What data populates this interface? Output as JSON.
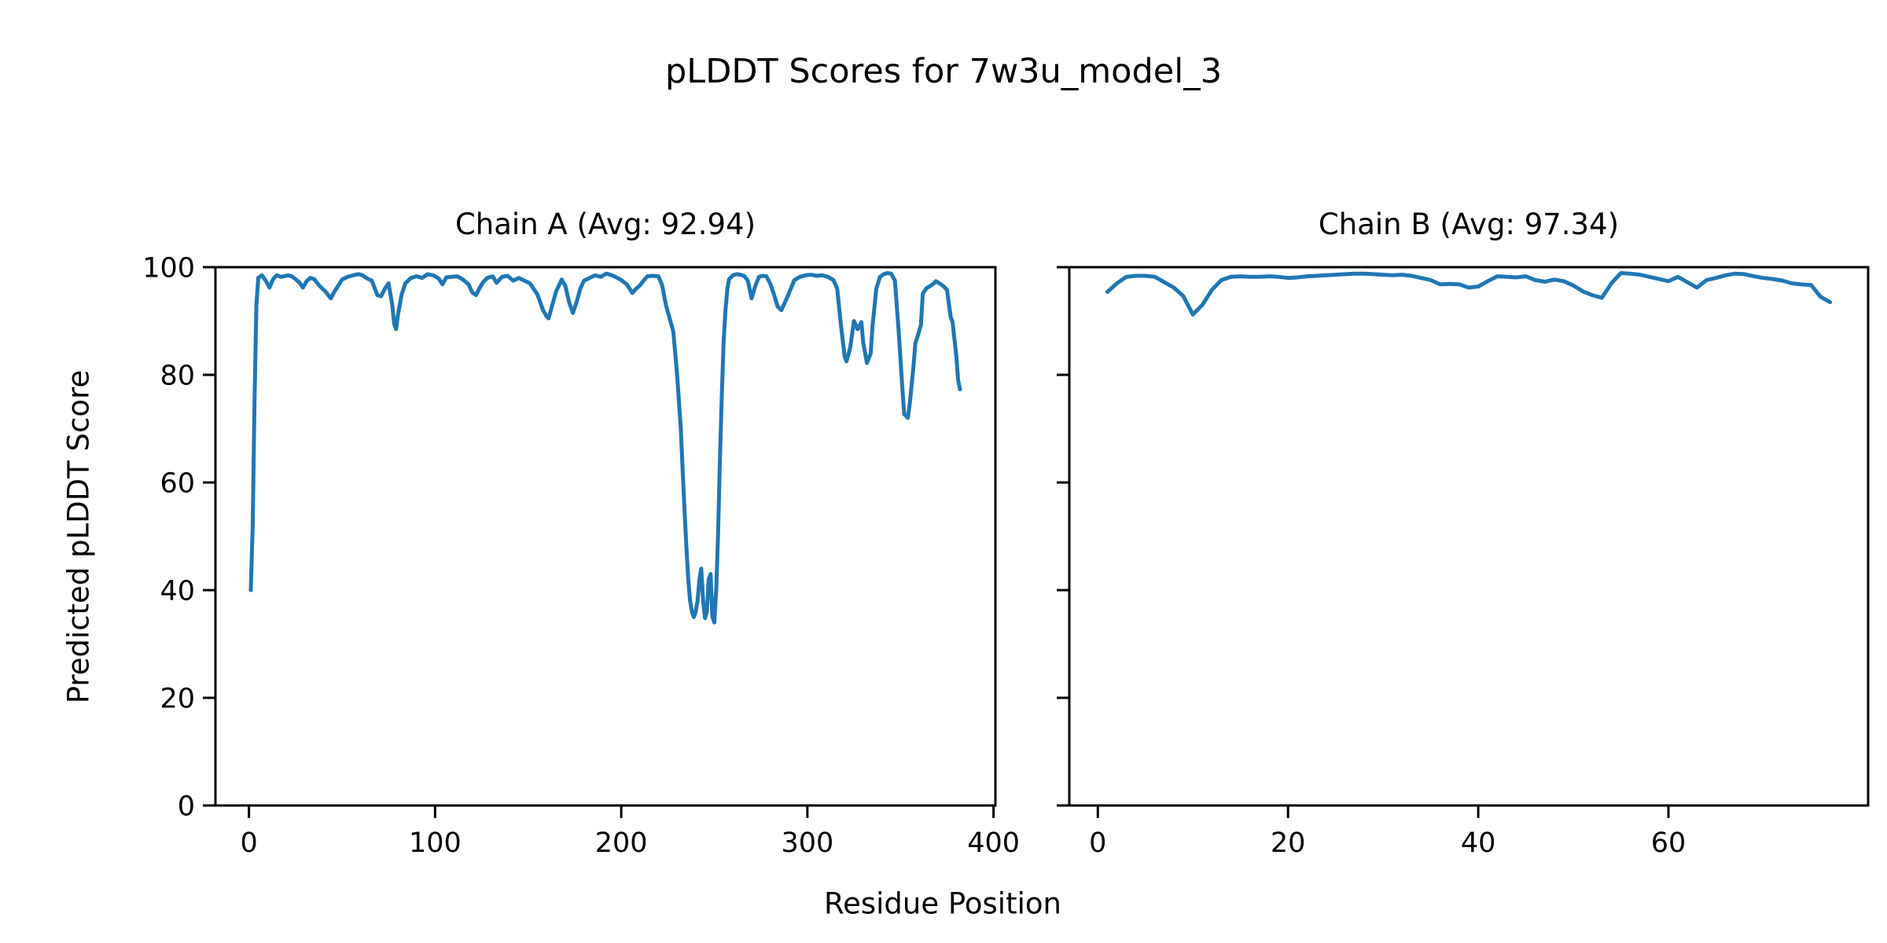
{
  "figure": {
    "suptitle": "pLDDT Scores for 7w3u_model_3",
    "xlabel": "Residue Position",
    "ylabel": "Predicted pLDDT Score",
    "line_color": "#1f77b4",
    "axis_color": "#000000",
    "background_color": "#ffffff"
  },
  "chart_data": [
    {
      "type": "line",
      "title": "Chain A (Avg: 92.94)",
      "chain": "A",
      "average_plddt": 92.94,
      "xlabel": "Residue Position",
      "ylabel": "Predicted pLDDT Score",
      "xlim": [
        -18,
        401
      ],
      "ylim": [
        0,
        100
      ],
      "x_ticks": [
        0,
        100,
        200,
        300,
        400
      ],
      "y_ticks": [
        0,
        20,
        40,
        60,
        80,
        100
      ],
      "show_y_tick_labels": true,
      "grid": false,
      "series": [
        {
          "name": "Chain A pLDDT",
          "points": [
            [
              1,
              40
            ],
            [
              2,
              52
            ],
            [
              3,
              75
            ],
            [
              4,
              93
            ],
            [
              5,
              98
            ],
            [
              7,
              98.5
            ],
            [
              9,
              97.5
            ],
            [
              11,
              96.2
            ],
            [
              13,
              97.8
            ],
            [
              15,
              98.5
            ],
            [
              17,
              98.2
            ],
            [
              19,
              98.3
            ],
            [
              21,
              98.5
            ],
            [
              23,
              98.3
            ],
            [
              25,
              97.8
            ],
            [
              27,
              97.2
            ],
            [
              29,
              96.2
            ],
            [
              31,
              97.4
            ],
            [
              33,
              98
            ],
            [
              35,
              97.8
            ],
            [
              38,
              96.5
            ],
            [
              41,
              95.5
            ],
            [
              44,
              94.2
            ],
            [
              46,
              95.5
            ],
            [
              48,
              96.6
            ],
            [
              50,
              97.7
            ],
            [
              53,
              98.2
            ],
            [
              55,
              98.4
            ],
            [
              57,
              98.6
            ],
            [
              59,
              98.7
            ],
            [
              61,
              98.5
            ],
            [
              63,
              98
            ],
            [
              66,
              97.5
            ],
            [
              69,
              94.8
            ],
            [
              71,
              94.6
            ],
            [
              73,
              96
            ],
            [
              75,
              97
            ],
            [
              77,
              93
            ],
            [
              78,
              89.5
            ],
            [
              79,
              88.5
            ],
            [
              80,
              91
            ],
            [
              82,
              94.9
            ],
            [
              84,
              97
            ],
            [
              87,
              98
            ],
            [
              90,
              98.3
            ],
            [
              93,
              98
            ],
            [
              96,
              98.7
            ],
            [
              99,
              98.5
            ],
            [
              102,
              97.9
            ],
            [
              104,
              96.8
            ],
            [
              106,
              98.1
            ],
            [
              109,
              98.2
            ],
            [
              112,
              98.3
            ],
            [
              115,
              97.7
            ],
            [
              118,
              96.8
            ],
            [
              120,
              95.3
            ],
            [
              122,
              94.8
            ],
            [
              124,
              96.2
            ],
            [
              126,
              97.3
            ],
            [
              128,
              98
            ],
            [
              131,
              98.3
            ],
            [
              133,
              97.1
            ],
            [
              136,
              98.2
            ],
            [
              139,
              98.4
            ],
            [
              142,
              97.5
            ],
            [
              145,
              98
            ],
            [
              148,
              97.5
            ],
            [
              151,
              97
            ],
            [
              155,
              94.9
            ],
            [
              158,
              92
            ],
            [
              160,
              90.8
            ],
            [
              161,
              90.5
            ],
            [
              163,
              93
            ],
            [
              165,
              95.5
            ],
            [
              168,
              97.7
            ],
            [
              170,
              96.5
            ],
            [
              172,
              93.5
            ],
            [
              174,
              91.5
            ],
            [
              176,
              93.5
            ],
            [
              178,
              96
            ],
            [
              180,
              97.5
            ],
            [
              183,
              98
            ],
            [
              186,
              98.5
            ],
            [
              189,
              98.2
            ],
            [
              192,
              98.8
            ],
            [
              195,
              98.5
            ],
            [
              198,
              98
            ],
            [
              200,
              97.6
            ],
            [
              203,
              96.8
            ],
            [
              206,
              95.2
            ],
            [
              208,
              96
            ],
            [
              210,
              96.6
            ],
            [
              212,
              97.5
            ],
            [
              214,
              98.3
            ],
            [
              217,
              98.4
            ],
            [
              220,
              98.3
            ],
            [
              222,
              96.6
            ],
            [
              224,
              93
            ],
            [
              226,
              90.5
            ],
            [
              228,
              88
            ],
            [
              230,
              80
            ],
            [
              232,
              70
            ],
            [
              233,
              62
            ],
            [
              234,
              55
            ],
            [
              235,
              48
            ],
            [
              236,
              42
            ],
            [
              237,
              38
            ],
            [
              238,
              36
            ],
            [
              239,
              35
            ],
            [
              240,
              36
            ],
            [
              241,
              38
            ],
            [
              242,
              42
            ],
            [
              243,
              44
            ],
            [
              244,
              38
            ],
            [
              245,
              34.8
            ],
            [
              246,
              36
            ],
            [
              247,
              42
            ],
            [
              248,
              43
            ],
            [
              249,
              35
            ],
            [
              250,
              34
            ],
            [
              251,
              40
            ],
            [
              252,
              50
            ],
            [
              253,
              64
            ],
            [
              254,
              76
            ],
            [
              255,
              86
            ],
            [
              256,
              92
            ],
            [
              257,
              96
            ],
            [
              258,
              97.8
            ],
            [
              260,
              98.5
            ],
            [
              262,
              98.7
            ],
            [
              264,
              98.6
            ],
            [
              266,
              98.4
            ],
            [
              268,
              97.5
            ],
            [
              270,
              94.2
            ],
            [
              272,
              96.5
            ],
            [
              274,
              98.2
            ],
            [
              276,
              98.4
            ],
            [
              278,
              98.3
            ],
            [
              280,
              97
            ],
            [
              282,
              95
            ],
            [
              284,
              92.7
            ],
            [
              286,
              92
            ],
            [
              288,
              93.5
            ],
            [
              290,
              95.1
            ],
            [
              293,
              97.6
            ],
            [
              296,
              98.2
            ],
            [
              299,
              98.5
            ],
            [
              302,
              98.6
            ],
            [
              305,
              98.4
            ],
            [
              308,
              98.5
            ],
            [
              311,
              98.2
            ],
            [
              314,
              97.6
            ],
            [
              316,
              96
            ],
            [
              318,
              89.3
            ],
            [
              320,
              83.5
            ],
            [
              321,
              82.5
            ],
            [
              323,
              85
            ],
            [
              325,
              90
            ],
            [
              327,
              88.5
            ],
            [
              329,
              89.8
            ],
            [
              330,
              86
            ],
            [
              332,
              82.2
            ],
            [
              334,
              84
            ],
            [
              335,
              89
            ],
            [
              337,
              96
            ],
            [
              339,
              98.2
            ],
            [
              341,
              98.7
            ],
            [
              343,
              98.9
            ],
            [
              345,
              98.8
            ],
            [
              347,
              97.5
            ],
            [
              349,
              88.3
            ],
            [
              351,
              77.7
            ],
            [
              352,
              72.7
            ],
            [
              354,
              72
            ],
            [
              355,
              74.7
            ],
            [
              357,
              81.5
            ],
            [
              358,
              85.9
            ],
            [
              359,
              86.9
            ],
            [
              361,
              89.3
            ],
            [
              362,
              95.1
            ],
            [
              364,
              96.1
            ],
            [
              366,
              96.5
            ],
            [
              368,
              97
            ],
            [
              369,
              97.4
            ],
            [
              371,
              97
            ],
            [
              373,
              96.5
            ],
            [
              375,
              95.8
            ],
            [
              377,
              90.7
            ],
            [
              378,
              89.8
            ],
            [
              380,
              83.5
            ],
            [
              381,
              79
            ],
            [
              382,
              77.3
            ]
          ]
        }
      ]
    },
    {
      "type": "line",
      "title": "Chain B (Avg: 97.34)",
      "chain": "B",
      "average_plddt": 97.34,
      "xlabel": "Residue Position",
      "ylabel": "Predicted pLDDT Score",
      "xlim": [
        -3,
        81
      ],
      "ylim": [
        0,
        100
      ],
      "x_ticks": [
        0,
        20,
        40,
        60
      ],
      "y_ticks": [
        0,
        20,
        40,
        60,
        80,
        100
      ],
      "show_y_tick_labels": false,
      "grid": false,
      "series": [
        {
          "name": "Chain B pLDDT",
          "points": [
            [
              1,
              95.4
            ],
            [
              2,
              97
            ],
            [
              3,
              98.2
            ],
            [
              4,
              98.4
            ],
            [
              5,
              98.4
            ],
            [
              6,
              98.2
            ],
            [
              7,
              97.2
            ],
            [
              8,
              96.2
            ],
            [
              9,
              94.6
            ],
            [
              10,
              91.2
            ],
            [
              11,
              93
            ],
            [
              12,
              95.8
            ],
            [
              13,
              97.6
            ],
            [
              14,
              98.2
            ],
            [
              15,
              98.3
            ],
            [
              16,
              98.2
            ],
            [
              17,
              98.2
            ],
            [
              18,
              98.3
            ],
            [
              19,
              98.2
            ],
            [
              20,
              98
            ],
            [
              21,
              98.1
            ],
            [
              22,
              98.3
            ],
            [
              23,
              98.4
            ],
            [
              24,
              98.5
            ],
            [
              25,
              98.6
            ],
            [
              26,
              98.7
            ],
            [
              27,
              98.8
            ],
            [
              28,
              98.8
            ],
            [
              29,
              98.7
            ],
            [
              30,
              98.6
            ],
            [
              31,
              98.5
            ],
            [
              32,
              98.6
            ],
            [
              33,
              98.4
            ],
            [
              34,
              98
            ],
            [
              35,
              97.6
            ],
            [
              36,
              96.8
            ],
            [
              37,
              96.9
            ],
            [
              38,
              96.8
            ],
            [
              39,
              96.2
            ],
            [
              40,
              96.4
            ],
            [
              41,
              97.4
            ],
            [
              42,
              98.3
            ],
            [
              43,
              98.2
            ],
            [
              44,
              98.1
            ],
            [
              45,
              98.3
            ],
            [
              46,
              97.6
            ],
            [
              47,
              97.3
            ],
            [
              48,
              97.7
            ],
            [
              49,
              97.4
            ],
            [
              50,
              96.6
            ],
            [
              51,
              95.5
            ],
            [
              52,
              94.8
            ],
            [
              53,
              94.3
            ],
            [
              54,
              97
            ],
            [
              55,
              98.9
            ],
            [
              56,
              98.8
            ],
            [
              57,
              98.6
            ],
            [
              58,
              98.2
            ],
            [
              59,
              97.8
            ],
            [
              60,
              97.4
            ],
            [
              61,
              98.2
            ],
            [
              62,
              97.2
            ],
            [
              63,
              96.2
            ],
            [
              64,
              97.6
            ],
            [
              65,
              98
            ],
            [
              66,
              98.5
            ],
            [
              67,
              98.8
            ],
            [
              68,
              98.7
            ],
            [
              69,
              98.3
            ],
            [
              70,
              98
            ],
            [
              71,
              97.8
            ],
            [
              72,
              97.5
            ],
            [
              73,
              97
            ],
            [
              74,
              96.8
            ],
            [
              75,
              96.7
            ],
            [
              76,
              94.5
            ],
            [
              77,
              93.5
            ]
          ]
        }
      ]
    }
  ]
}
